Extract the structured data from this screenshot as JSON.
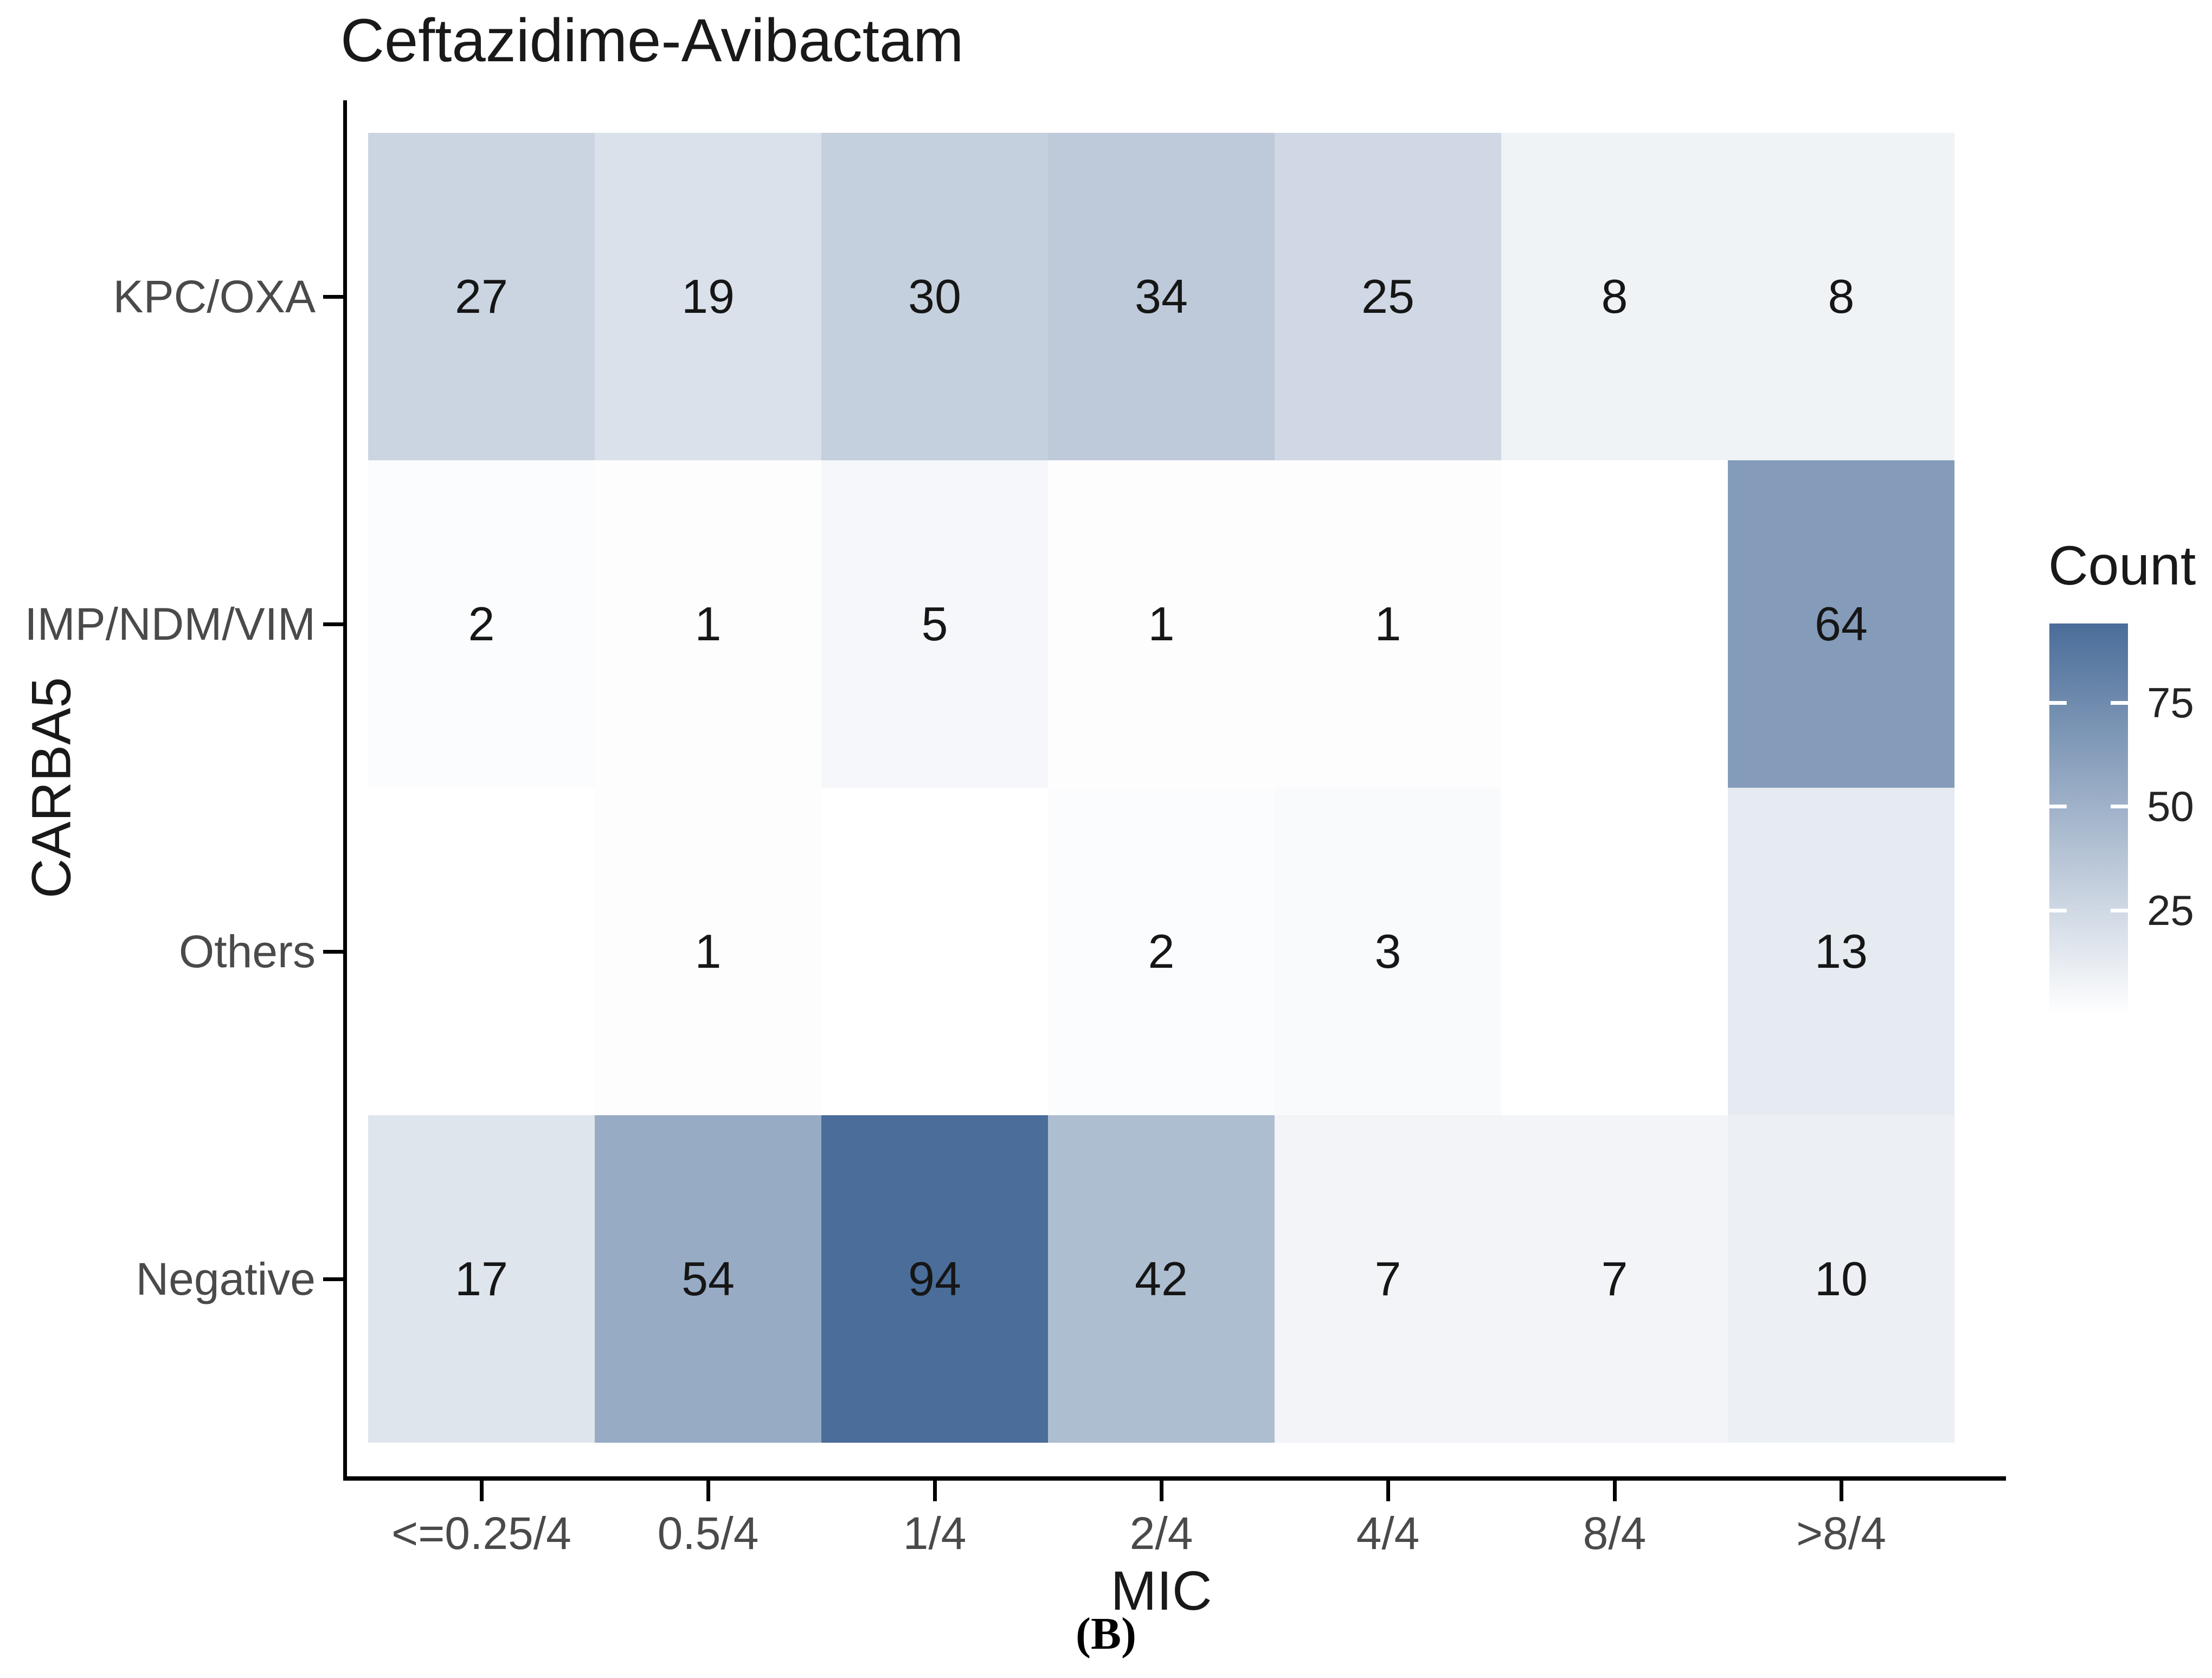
{
  "chart": {
    "title": "Ceftazidime-Avibactam",
    "xlabel": "MIC",
    "ylabel": "CARBA5",
    "caption": "(B)"
  },
  "legend": {
    "title": "Count",
    "ticks": [
      75,
      50,
      25
    ],
    "domain": [
      0,
      94
    ],
    "color_low": "#ffffff",
    "color_high": "#4a6d99"
  },
  "chart_data": {
    "type": "heatmap",
    "x": [
      "<=0.25/4",
      "0.5/4",
      "1/4",
      "2/4",
      "4/4",
      "8/4",
      ">8/4"
    ],
    "y": [
      "KPC/OXA",
      "IMP/NDM/VIM",
      "Others",
      "Negative"
    ],
    "xlabel": "MIC",
    "ylabel": "CARBA5",
    "title": "Ceftazidime-Avibactam",
    "legend_title": "Count",
    "legend_ticks": [
      25,
      50,
      75
    ],
    "color_domain": [
      0,
      94
    ],
    "color_low": "#ffffff",
    "color_high": "#4a6d99",
    "values": [
      [
        27,
        19,
        30,
        34,
        25,
        8,
        8
      ],
      [
        2,
        1,
        5,
        1,
        1,
        null,
        64
      ],
      [
        null,
        1,
        null,
        2,
        3,
        null,
        13
      ],
      [
        17,
        54,
        94,
        42,
        7,
        7,
        10
      ]
    ]
  }
}
